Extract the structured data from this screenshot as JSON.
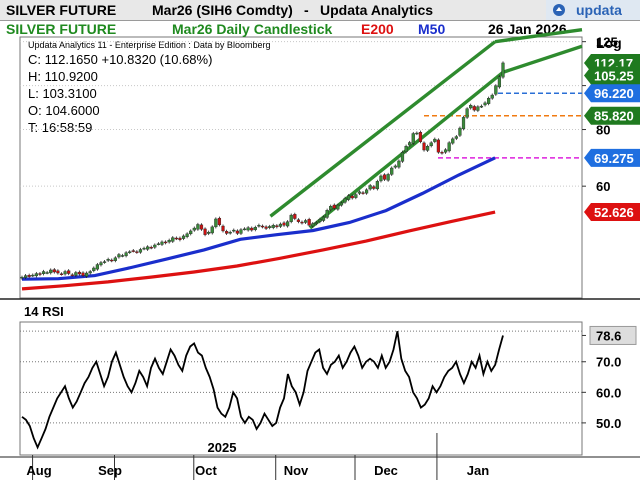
{
  "header": {
    "instrument": "SILVER FUTURE",
    "contract": "Mar26 (SIH6 Comdty)",
    "separator": "-",
    "vendor": "Updata Analytics",
    "logo_text": "updata"
  },
  "colors": {
    "bull": "#3a8a3a",
    "bear": "#cc1111",
    "ema200": "#dd1111",
    "ma50": "#1a2ecc",
    "channel": "#2e8b2e",
    "rsi": "#000000",
    "level_blue": "#2a6fd6",
    "level_orange": "#f07a10",
    "level_magenta": "#dd22dd",
    "tag_green": "#1f7a1f",
    "tag_blue": "#1f6fe0",
    "tag_red": "#dd1111"
  },
  "chart_data": [
    {
      "type": "candlestick",
      "legend": [
        {
          "label": "SILVER FUTURE",
          "color": "#1f8a1f"
        },
        {
          "label": "Mar26 Daily Candlestick",
          "color": "#1f8a1f"
        },
        {
          "label": "E200",
          "color": "#dd1111"
        },
        {
          "label": "M50",
          "color": "#1a2ecc"
        }
      ],
      "date_label": "26 Jan 2026",
      "scale": "log",
      "scale_label": "Log",
      "subtitle": "Updata Analytics 11 - Enterprise Edition : Data by Bloomberg",
      "info": [
        "C: 112.1650  +10.8320 (10.68%)",
        "H: 110.9200",
        "L: 103.3100",
        "O: 104.6000",
        "T: 16:58:59"
      ],
      "y_ticks": [
        125,
        100,
        80,
        60
      ],
      "ylim": [
        34,
        128
      ],
      "months": [
        "Aug",
        "Sep",
        "Oct",
        "Nov",
        "Dec",
        "Jan"
      ],
      "year_label": "2025",
      "levels": [
        {
          "value": 96.22,
          "label": "96.220",
          "color": "#2a6fd6",
          "tag": "#1f6fe0"
        },
        {
          "value": 85.82,
          "label": "85.820",
          "color": "#f07a10",
          "tag": "#1f7a1f"
        },
        {
          "value": 69.275,
          "label": "69.275",
          "color": "#dd22dd",
          "tag": "#1f6fe0"
        }
      ],
      "tags": [
        {
          "value": 112.17,
          "label": "112.17",
          "color": "#1f7a1f"
        },
        {
          "value": 105.25,
          "label": "105.25",
          "color": "#1f7a1f"
        },
        {
          "value": 52.626,
          "label": "52.626",
          "color": "#dd1111"
        }
      ],
      "channel": {
        "upper": [
          [
            "2025-10-30",
            51.5
          ],
          [
            "2026-01-23",
            125.0
          ]
        ],
        "lower": [
          [
            "2025-11-14",
            48.5
          ],
          [
            "2026-01-26",
            107.0
          ]
        ]
      },
      "series": [
        {
          "name": "E200",
          "start": "2025-07-28",
          "end": "2026-01-23",
          "values": [
            35.6,
            36.2,
            36.9,
            37.8,
            38.8,
            40.0,
            41.6,
            43.4,
            45.4,
            47.8,
            50.2,
            52.6
          ]
        },
        {
          "name": "M50",
          "start": "2025-07-28",
          "end": "2026-01-23",
          "values": [
            37.4,
            37.5,
            38.1,
            39.7,
            41.5,
            43.4,
            45.8,
            46.9,
            47.9,
            49.9,
            53.0,
            57.8,
            63.5,
            69.3
          ]
        },
        {
          "name": "Close",
          "start": "2025-07-28",
          "end": "2026-01-26",
          "values": [
            37.8,
            38.1,
            37.9,
            38.2,
            38.5,
            38.3,
            38.9,
            38.7,
            39.2,
            38.8,
            38.6,
            38.4,
            38.9,
            38.5,
            38.2,
            38.7,
            38.4,
            38.1,
            38.6,
            38.9,
            39.6,
            40.3,
            40.7,
            40.9,
            41.4,
            41.1,
            41.7,
            42.4,
            42.2,
            42.8,
            43.0,
            43.2,
            42.9,
            43.5,
            43.8,
            44.1,
            43.9,
            44.5,
            44.8,
            45.2,
            45.0,
            45.6,
            46.2,
            46.0,
            45.7,
            46.6,
            47.1,
            47.8,
            48.5,
            49.4,
            48.2,
            46.9,
            47.5,
            48.8,
            50.8,
            49.3,
            47.8,
            47.2,
            47.5,
            48.0,
            47.2,
            48.1,
            48.3,
            48.6,
            48.0,
            48.7,
            49.2,
            48.8,
            48.4,
            48.9,
            49.2,
            48.8,
            49.5,
            49.2,
            50.1,
            51.8,
            50.9,
            50.1,
            49.8,
            50.4,
            49.2,
            49.6,
            49.9,
            50.7,
            51.3,
            53.1,
            54.2,
            53.6,
            54.5,
            55.1,
            56.4,
            57.2,
            56.5,
            57.5,
            58.3,
            57.9,
            58.9,
            60.2,
            59.3,
            61.5,
            63.2,
            62.1,
            63.7,
            65.8,
            66.5,
            68.2,
            71.3,
            73.5,
            74.9,
            78.4,
            78.6,
            75.2,
            72.1,
            73.5,
            74.8,
            76.2,
            71.3,
            71.0,
            72.2,
            74.8,
            76.3,
            77.2,
            80.6,
            85.1,
            88.9,
            90.5,
            88.3,
            89.8,
            90.1,
            91.6,
            93.8,
            95.3,
            99.9,
            104.6,
            112.2
          ]
        }
      ]
    },
    {
      "type": "line",
      "title": "14 RSI",
      "y_ticks": [
        78.6,
        70.0,
        60.0,
        50.0
      ],
      "dotted_levels": [
        80,
        70,
        60,
        50
      ],
      "last_value_label": "78.6",
      "ylim": [
        39.5,
        83
      ],
      "series": [
        {
          "name": "14 RSI",
          "start": "2025-07-28",
          "end": "2026-01-26",
          "values": [
            52,
            51,
            49,
            45,
            42,
            45,
            48,
            52,
            55,
            58,
            60,
            62,
            58,
            55,
            57,
            60,
            63,
            65,
            68,
            70,
            66,
            62,
            65,
            70,
            73,
            69,
            65,
            62,
            60,
            63,
            67,
            65,
            62,
            68,
            71,
            68,
            66,
            70,
            74,
            72,
            69,
            67,
            72,
            75,
            76,
            73,
            72,
            68,
            65,
            61,
            55,
            53,
            52,
            55,
            60,
            58,
            52,
            50,
            52,
            51,
            48,
            50,
            53,
            51,
            49,
            50,
            55,
            58,
            66,
            62,
            60,
            56,
            60,
            67,
            70,
            73,
            74,
            68,
            66,
            69,
            70,
            72,
            68,
            70,
            73,
            75,
            72,
            68,
            70,
            71,
            70,
            68,
            72,
            68,
            70,
            74,
            80,
            71,
            67,
            65,
            60,
            58,
            55,
            56,
            58,
            62,
            60,
            62,
            65,
            67,
            68,
            70,
            66,
            63,
            66,
            70,
            68,
            72,
            66,
            70,
            67,
            69,
            74,
            78.6
          ]
        }
      ]
    }
  ]
}
